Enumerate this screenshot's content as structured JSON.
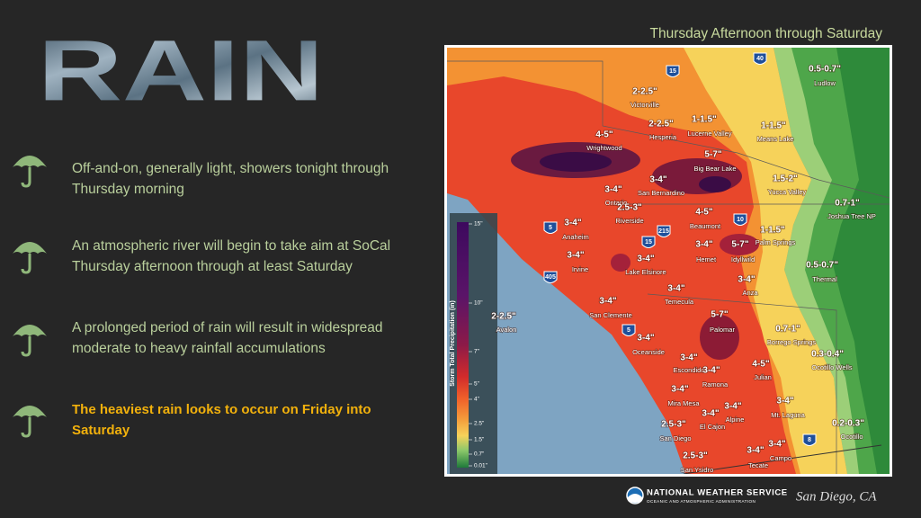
{
  "title": "RAIN",
  "bullets": [
    {
      "text": "Off-and-on, generally light, showers tonight through Thursday morning"
    },
    {
      "text": "An atmospheric river will begin to take aim at SoCal Thursday afternoon through at least Saturday"
    },
    {
      "text": "A prolonged period of rain will result in widespread moderate to heavy rainfall accumulations"
    },
    {
      "text": "The heaviest rain looks to occur on Friday into Saturday"
    }
  ],
  "map": {
    "title": "Thursday Afternoon through Saturday",
    "legend": {
      "label": "Storm Total Precipitation (in)",
      "ticks": [
        "15\"",
        "10\"",
        "7\"",
        "5\"",
        "4\"",
        "2.5\"",
        "1.5\"",
        "0.7\"",
        "0.01\""
      ]
    },
    "routes": [
      "15",
      "40",
      "10",
      "5",
      "405",
      "215",
      "15",
      "5",
      "8"
    ],
    "labels": [
      {
        "name": "Victorville",
        "amount": "2-2.5\""
      },
      {
        "name": "Hesperia",
        "amount": "2-2.5\""
      },
      {
        "name": "Lucerne Valley",
        "amount": "1-1.5\""
      },
      {
        "name": "Means Lake",
        "amount": "1-1.5\""
      },
      {
        "name": "Ludlow",
        "amount": "0.5-0.7\""
      },
      {
        "name": "Wrightwood",
        "amount": "4-5\""
      },
      {
        "name": "Big Bear Lake",
        "amount": "5-7\""
      },
      {
        "name": "Yucca Valley",
        "amount": "1.5-2\""
      },
      {
        "name": "San Bernardino",
        "amount": "3-4\""
      },
      {
        "name": "Ontario",
        "amount": "3-4\""
      },
      {
        "name": "Riverside",
        "amount": "2.5-3\""
      },
      {
        "name": "Joshua Tree NP",
        "amount": "0.7-1\""
      },
      {
        "name": "Beaumont",
        "amount": "4-5\""
      },
      {
        "name": "Palm Springs",
        "amount": "1-1.5\""
      },
      {
        "name": "Anaheim",
        "amount": "3-4\""
      },
      {
        "name": "Hemet",
        "amount": "3-4\""
      },
      {
        "name": "Idyllwild",
        "amount": "5-7\""
      },
      {
        "name": "Irvine",
        "amount": "3-4\""
      },
      {
        "name": "Lake Elsinore",
        "amount": "3-4\""
      },
      {
        "name": "Thermal",
        "amount": "0.5-0.7\""
      },
      {
        "name": "Anza",
        "amount": "3-4\""
      },
      {
        "name": "Temecula",
        "amount": "3-4\""
      },
      {
        "name": "San Clemente",
        "amount": "3-4\""
      },
      {
        "name": "Avalon",
        "amount": "2-2.5\""
      },
      {
        "name": "Palomar",
        "amount": "5-7\""
      },
      {
        "name": "Borrego Springs",
        "amount": "0.7-1\""
      },
      {
        "name": "Oceanside",
        "amount": "3-4\""
      },
      {
        "name": "Ocotillo Wells",
        "amount": "0.3-0.4\""
      },
      {
        "name": "Escondido",
        "amount": "3-4\""
      },
      {
        "name": "Julian",
        "amount": "4-5\""
      },
      {
        "name": "Ramona",
        "amount": "3-4\""
      },
      {
        "name": "Mira Mesa",
        "amount": "3-4\""
      },
      {
        "name": "Mt. Laguna",
        "amount": "3-4\""
      },
      {
        "name": "Alpine",
        "amount": "3-4\""
      },
      {
        "name": "El Cajon",
        "amount": "3-4\""
      },
      {
        "name": "San Diego",
        "amount": "2.5-3\""
      },
      {
        "name": "Ocotillo",
        "amount": "0.2-0.3\""
      },
      {
        "name": "Campo",
        "amount": "3-4\""
      },
      {
        "name": "Tecate",
        "amount": "3-4\""
      },
      {
        "name": "San Ysidro",
        "amount": "2.5-3\""
      }
    ]
  },
  "footer": {
    "agency": "NATIONAL WEATHER SERVICE",
    "subtitle": "OCEANIC AND ATMOSPHERIC ADMINISTRATION",
    "office": "San Diego, CA"
  }
}
